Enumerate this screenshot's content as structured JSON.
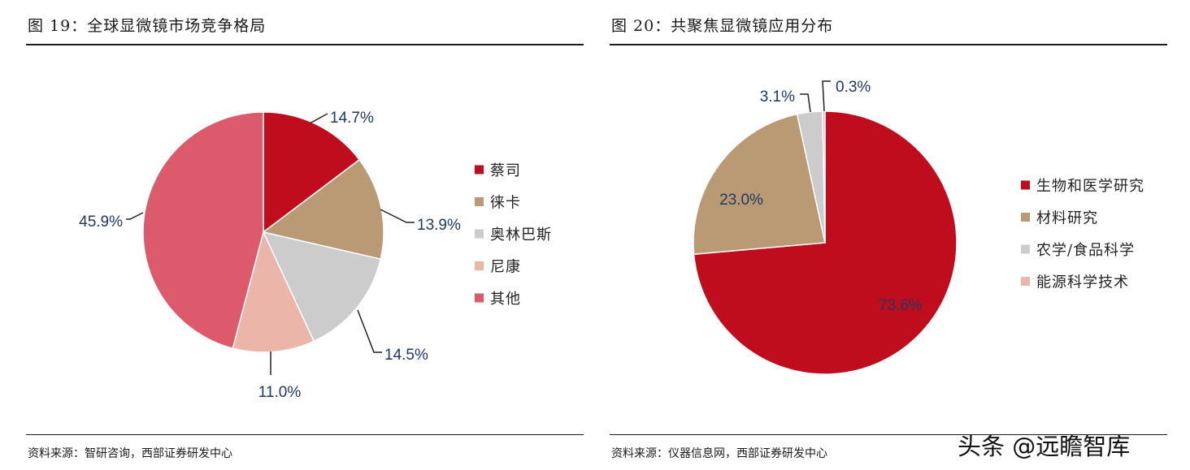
{
  "charts": [
    {
      "title": "图 19：全球显微镜市场竞争格局",
      "source": "资料来源：智研咨询，西部证券研发中心",
      "chart_data": {
        "type": "pie",
        "title": "图 19：全球显微镜市场竞争格局",
        "labels": [
          "蔡司",
          "徕卡",
          "奥林巴斯",
          "尼康",
          "其他"
        ],
        "values": [
          14.7,
          13.9,
          14.5,
          11.0,
          45.9
        ],
        "value_labels": [
          "14.7%",
          "13.9%",
          "14.5%",
          "11.0%",
          "45.9%"
        ],
        "colors": [
          "#c00d1e",
          "#b99a74",
          "#cccccc",
          "#ebb5a9",
          "#dc5a6b"
        ],
        "legend_position": "right"
      }
    },
    {
      "title": "图 20：共聚焦显微镜应用分布",
      "source": "资料来源：仪器信息网，西部证券研发中心",
      "chart_data": {
        "type": "pie",
        "title": "图 20：共聚焦显微镜应用分布",
        "labels": [
          "生物和医学研究",
          "材料研究",
          "农学/食品科学",
          "能源科学技术"
        ],
        "values": [
          73.6,
          23.0,
          3.1,
          0.3
        ],
        "value_labels": [
          "73.6%",
          "23.0%",
          "3.1%",
          "0.3%"
        ],
        "colors": [
          "#c00d1e",
          "#b99a74",
          "#cccccc",
          "#ebb5a9"
        ],
        "legend_position": "right"
      }
    }
  ],
  "watermark": "头条 @远瞻智库"
}
